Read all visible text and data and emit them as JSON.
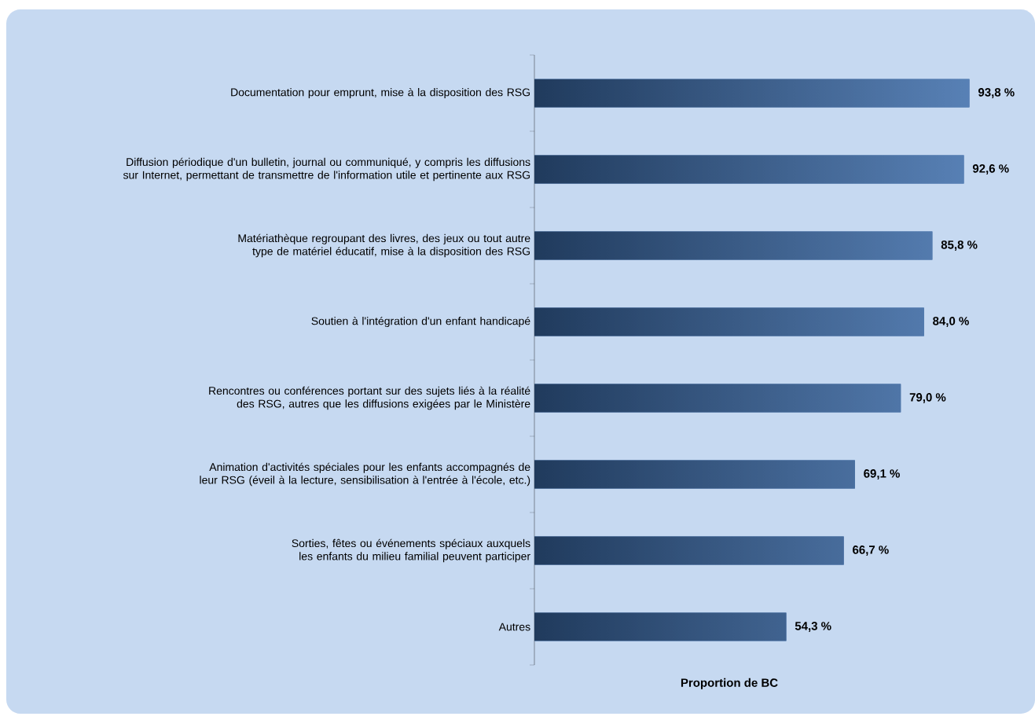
{
  "chart_data": {
    "type": "bar",
    "orientation": "horizontal",
    "categories": [
      "Documentation pour emprunt, mise à la disposition des RSG",
      "Diffusion périodique d'un bulletin, journal ou communiqué, y compris les diffusions sur Internet, permettant de transmettre de l'information utile et pertinente aux RSG",
      "Matériathèque regroupant des livres, des jeux ou tout autre type de matériel éducatif, mise à la disposition des RSG",
      "Soutien à l'intégration d'un enfant handicapé",
      "Rencontres ou conférences portant sur des sujets liés à la réalité des RSG, autres que les diffusions exigées par le Ministère",
      "Animation d'activités spéciales pour les enfants accompagnés de leur RSG (éveil à la lecture, sensibilisation à l'entrée à l'école, etc.)",
      "Sorties, fêtes ou événements spéciaux auxquels les enfants du milieu familial peuvent participer",
      "Autres"
    ],
    "values": [
      93.8,
      92.6,
      85.8,
      84.0,
      79.0,
      69.1,
      66.7,
      54.3
    ],
    "value_labels": [
      "93,8 %",
      "92,6 %",
      "85,8 %",
      "84,0 %",
      "79,0 %",
      "69,1 %",
      "66,7 %",
      "54,3 %"
    ],
    "color": "#3a6aa8",
    "xlabel": "Proportion de BC"
  }
}
